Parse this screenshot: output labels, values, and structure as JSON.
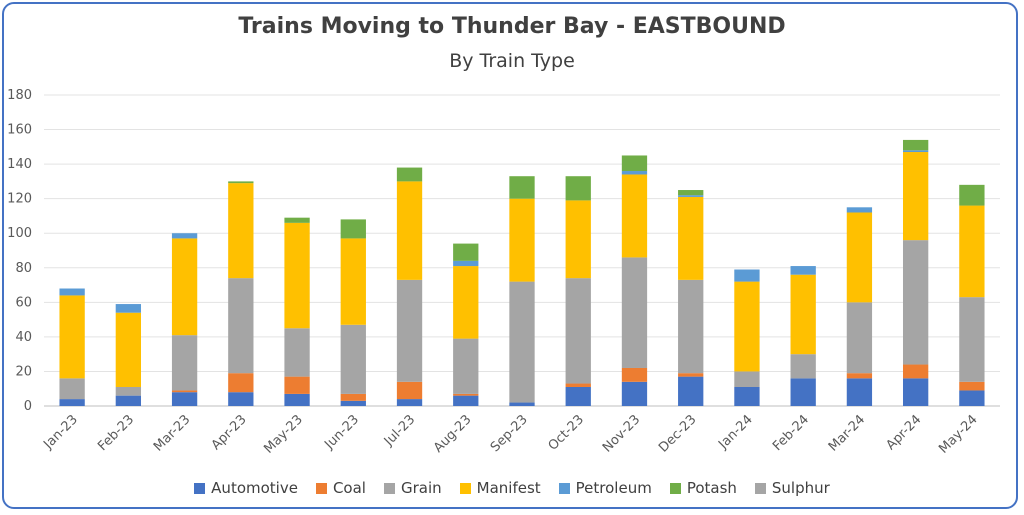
{
  "chart_data": {
    "type": "bar",
    "stacked": true,
    "title": "Trains Moving to Thunder Bay - EASTBOUND",
    "subtitle": "By Train Type",
    "xlabel": "",
    "ylabel": "",
    "ylim": [
      0,
      180
    ],
    "yticks": [
      "0",
      "20",
      "40",
      "60",
      "80",
      "100",
      "120",
      "140",
      "160",
      "180"
    ],
    "grid": true,
    "legend_position": "bottom",
    "categories": [
      "Jan-23",
      "Feb-23",
      "Mar-23",
      "Apr-23",
      "May-23",
      "Jun-23",
      "Jul-23",
      "Aug-23",
      "Sep-23",
      "Oct-23",
      "Nov-23",
      "Dec-23",
      "Jan-24",
      "Feb-24",
      "Mar-24",
      "Apr-24",
      "May-24"
    ],
    "series": [
      {
        "name": "Automotive",
        "color": "#4472c4",
        "values": [
          4,
          6,
          8,
          8,
          7,
          3,
          4,
          6,
          2,
          11,
          14,
          17,
          11,
          16,
          16,
          16,
          9
        ]
      },
      {
        "name": "Coal",
        "color": "#ed7d31",
        "values": [
          0,
          0,
          1,
          11,
          10,
          4,
          10,
          1,
          0,
          2,
          8,
          2,
          0,
          0,
          3,
          8,
          5
        ]
      },
      {
        "name": "Grain",
        "color": "#a5a5a5",
        "values": [
          12,
          5,
          32,
          55,
          28,
          40,
          59,
          32,
          70,
          61,
          64,
          54,
          9,
          14,
          41,
          72,
          49
        ]
      },
      {
        "name": "Manifest",
        "color": "#ffc000",
        "values": [
          48,
          43,
          56,
          55,
          61,
          50,
          57,
          42,
          48,
          45,
          48,
          48,
          52,
          46,
          52,
          51,
          53
        ]
      },
      {
        "name": "Petroleum",
        "color": "#5b9bd5",
        "values": [
          4,
          5,
          3,
          0,
          0,
          0,
          0,
          3,
          0,
          0,
          2,
          1,
          7,
          5,
          3,
          1,
          0
        ]
      },
      {
        "name": "Potash",
        "color": "#70ad47",
        "values": [
          0,
          0,
          0,
          1,
          3,
          11,
          8,
          10,
          13,
          14,
          9,
          3,
          0,
          0,
          0,
          6,
          12
        ]
      },
      {
        "name": "Sulphur",
        "color": "#a5a5a5",
        "values": [
          0,
          0,
          0,
          0,
          0,
          0,
          0,
          0,
          0,
          0,
          0,
          0,
          0,
          0,
          0,
          0,
          0
        ]
      }
    ]
  }
}
